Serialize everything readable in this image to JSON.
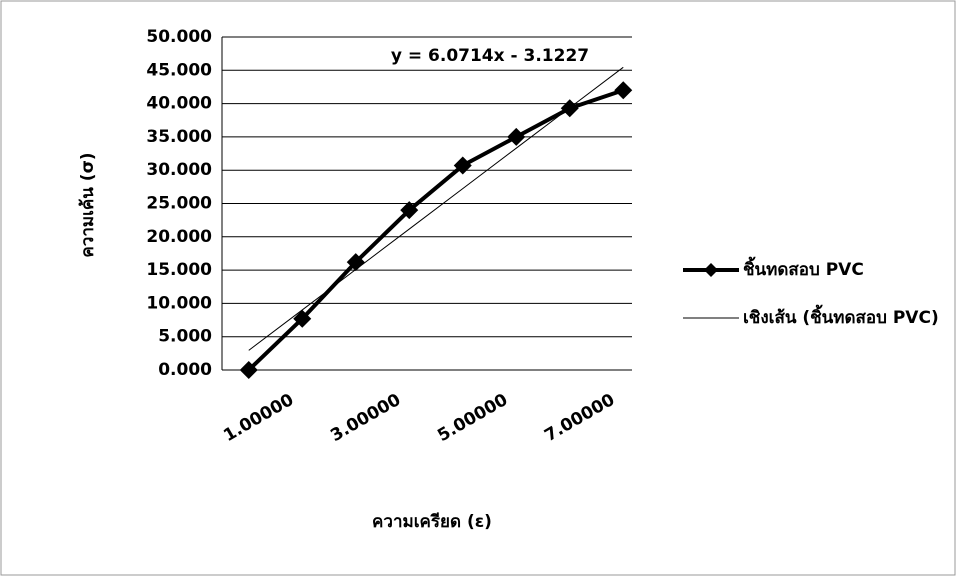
{
  "chart_data": {
    "type": "line",
    "y_label": "ความเค้น (σ)",
    "x_label": "ความเครียด (ε)",
    "annotation": "y = 6.0714x - 3.1227",
    "categories": [
      "1.00000",
      null,
      "3.00000",
      null,
      "5.00000",
      null,
      "7.00000",
      null
    ],
    "series": [
      {
        "name": "ชิ้นทดสอบ PVC",
        "color": "#000000",
        "marker": "diamond",
        "line_width": 4,
        "values": [
          0,
          7.7,
          16.2,
          24.0,
          30.7,
          35.0,
          39.3,
          42.0
        ]
      },
      {
        "name": "เชิงเส้น (ชิ้นทดสอบ PVC)",
        "color": "#000000",
        "marker": "none",
        "line_width": 1,
        "values": [
          2.949,
          9.02,
          15.091,
          21.163,
          27.234,
          33.306,
          39.377,
          45.448
        ]
      }
    ],
    "ylim": [
      0,
      50
    ],
    "yticks": [
      {
        "value": 0,
        "label": "0.000"
      },
      {
        "value": 5,
        "label": "5.000"
      },
      {
        "value": 10,
        "label": "10.000"
      },
      {
        "value": 15,
        "label": "15.000"
      },
      {
        "value": 20,
        "label": "20.000"
      },
      {
        "value": 25,
        "label": "25.000"
      },
      {
        "value": 30,
        "label": "30.000"
      },
      {
        "value": 35,
        "label": "35.000"
      },
      {
        "value": 40,
        "label": "40.000"
      },
      {
        "value": 45,
        "label": "45.000"
      },
      {
        "value": 50,
        "label": "50.000"
      }
    ],
    "grid": true,
    "legend": "right"
  }
}
